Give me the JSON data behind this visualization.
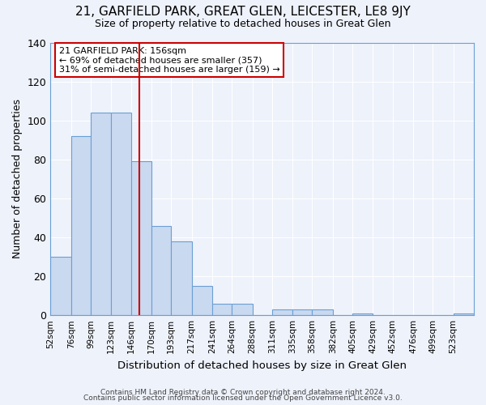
{
  "title": "21, GARFIELD PARK, GREAT GLEN, LEICESTER, LE8 9JY",
  "subtitle": "Size of property relative to detached houses in Great Glen",
  "xlabel": "Distribution of detached houses by size in Great Glen",
  "ylabel": "Number of detached properties",
  "bar_color": "#c9d9f0",
  "bar_edge_color": "#6b9fd4",
  "background_color": "#eef2fb",
  "grid_color": "#ffffff",
  "bin_labels": [
    "52sqm",
    "76sqm",
    "99sqm",
    "123sqm",
    "146sqm",
    "170sqm",
    "193sqm",
    "217sqm",
    "241sqm",
    "264sqm",
    "288sqm",
    "311sqm",
    "335sqm",
    "358sqm",
    "382sqm",
    "405sqm",
    "429sqm",
    "452sqm",
    "476sqm",
    "499sqm",
    "523sqm"
  ],
  "bin_counts": [
    30,
    92,
    104,
    104,
    79,
    46,
    38,
    15,
    6,
    6,
    0,
    3,
    3,
    3,
    0,
    1,
    0,
    0,
    0,
    0,
    1
  ],
  "bin_edges": [
    52,
    76,
    99,
    123,
    146,
    170,
    193,
    217,
    241,
    264,
    288,
    311,
    335,
    358,
    382,
    405,
    429,
    452,
    476,
    499,
    523,
    547
  ],
  "vline_x": 156,
  "vline_color": "#cc0000",
  "annotation_title": "21 GARFIELD PARK: 156sqm",
  "annotation_line1": "← 69% of detached houses are smaller (357)",
  "annotation_line2": "31% of semi-detached houses are larger (159) →",
  "annotation_box_color": "#ffffff",
  "annotation_box_edge": "#cc0000",
  "ylim": [
    0,
    140
  ],
  "yticks": [
    0,
    20,
    40,
    60,
    80,
    100,
    120,
    140
  ],
  "footer1": "Contains HM Land Registry data © Crown copyright and database right 2024.",
  "footer2": "Contains public sector information licensed under the Open Government Licence v3.0."
}
